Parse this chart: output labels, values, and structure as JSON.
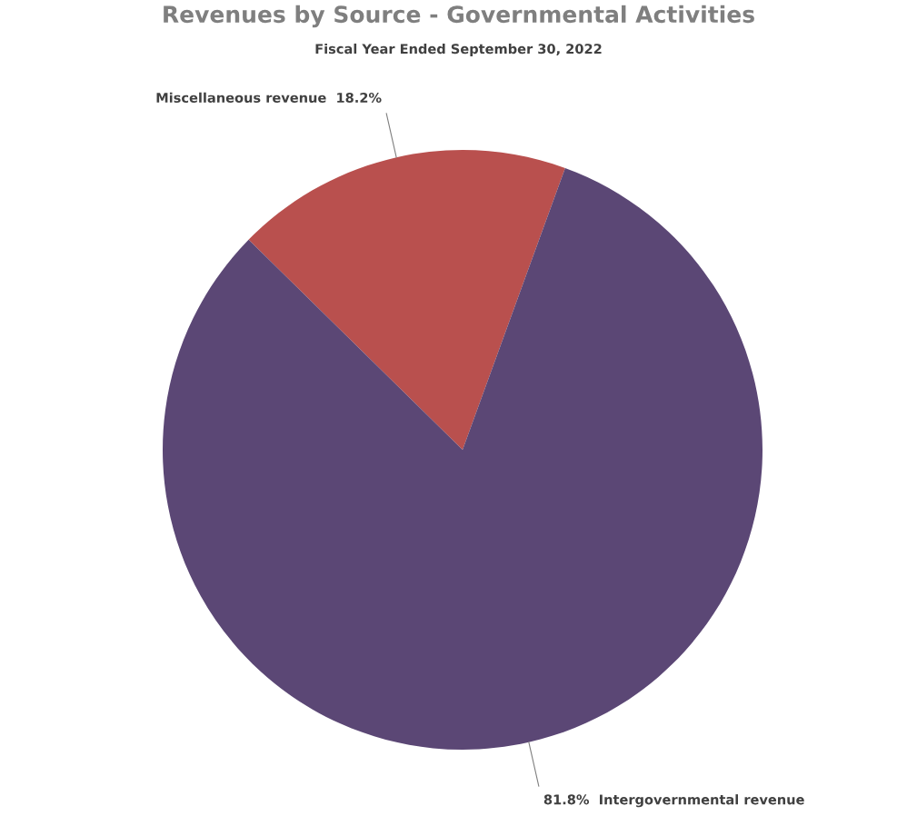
{
  "chart_data": {
    "type": "pie",
    "title": "Revenues by Source - Governmental Activities",
    "subtitle": "Fiscal Year Ended September 30, 2022",
    "categories": [
      "Miscellaneous revenue",
      "Intergovernmental revenue"
    ],
    "values": [
      18.2,
      81.8
    ],
    "value_labels": [
      "18.2%",
      "81.8%"
    ],
    "colors": [
      "#b9504e",
      "#5b4775"
    ],
    "legend": false
  }
}
